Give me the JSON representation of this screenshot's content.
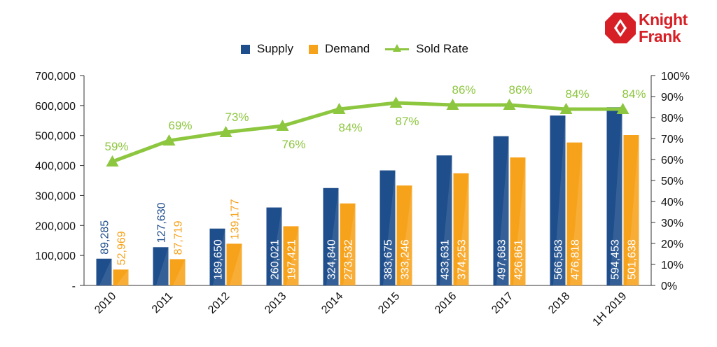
{
  "logo": {
    "line1": "Knight",
    "line2": "Frank",
    "color": "#d71f26"
  },
  "legend": [
    {
      "label": "Supply",
      "kind": "bar",
      "color": "#1f4e8c"
    },
    {
      "label": "Demand",
      "kind": "bar",
      "color": "#f7a21b"
    },
    {
      "label": "Sold Rate",
      "kind": "line",
      "color": "#8dc63f"
    }
  ],
  "chart_data": {
    "type": "bar",
    "categories": [
      "2010",
      "2011",
      "2012",
      "2013",
      "2014",
      "2015",
      "2016",
      "2017",
      "2018",
      "1H 2019"
    ],
    "series": [
      {
        "name": "Supply",
        "type": "bar",
        "axis": "left",
        "color": "#1f4e8c",
        "values": [
          89285,
          127630,
          189650,
          260021,
          324840,
          383675,
          433631,
          497683,
          566583,
          594453
        ],
        "labels": [
          "89,285",
          "127,630",
          "189,650",
          "260,021",
          "324,840",
          "383,675",
          "433,631",
          "497,683",
          "566,583",
          "594,453"
        ]
      },
      {
        "name": "Demand",
        "type": "bar",
        "axis": "left",
        "color": "#f7a21b",
        "values": [
          52969,
          87719,
          139177,
          197421,
          273532,
          333246,
          374253,
          426861,
          476818,
          501638
        ],
        "labels": [
          "52,969",
          "87,719",
          "139,177",
          "197,421",
          "273,532",
          "333,246",
          "374,253",
          "426,861",
          "476,818",
          "501,638"
        ]
      },
      {
        "name": "Sold Rate",
        "type": "line",
        "axis": "right",
        "color": "#8dc63f",
        "values": [
          59,
          69,
          73,
          76,
          84,
          87,
          86,
          86,
          84,
          84
        ],
        "labels": [
          "59%",
          "69%",
          "73%",
          "76%",
          "84%",
          "87%",
          "86%",
          "86%",
          "84%",
          "84%"
        ]
      }
    ],
    "y_left": {
      "min": 0,
      "max": 700000,
      "ticks": [
        0,
        100000,
        200000,
        300000,
        400000,
        500000,
        600000,
        700000
      ],
      "tick_labels": [
        "-",
        "100,000",
        "200,000",
        "300,000",
        "400,000",
        "500,000",
        "600,000",
        "700,000"
      ]
    },
    "y_right": {
      "min": 0,
      "max": 100,
      "ticks": [
        0,
        10,
        20,
        30,
        40,
        50,
        60,
        70,
        80,
        90,
        100
      ],
      "tick_labels": [
        "0%",
        "10%",
        "20%",
        "30%",
        "40%",
        "50%",
        "60%",
        "70%",
        "80%",
        "90%",
        "100%"
      ]
    },
    "grid": false,
    "legend_position": "top-center"
  }
}
